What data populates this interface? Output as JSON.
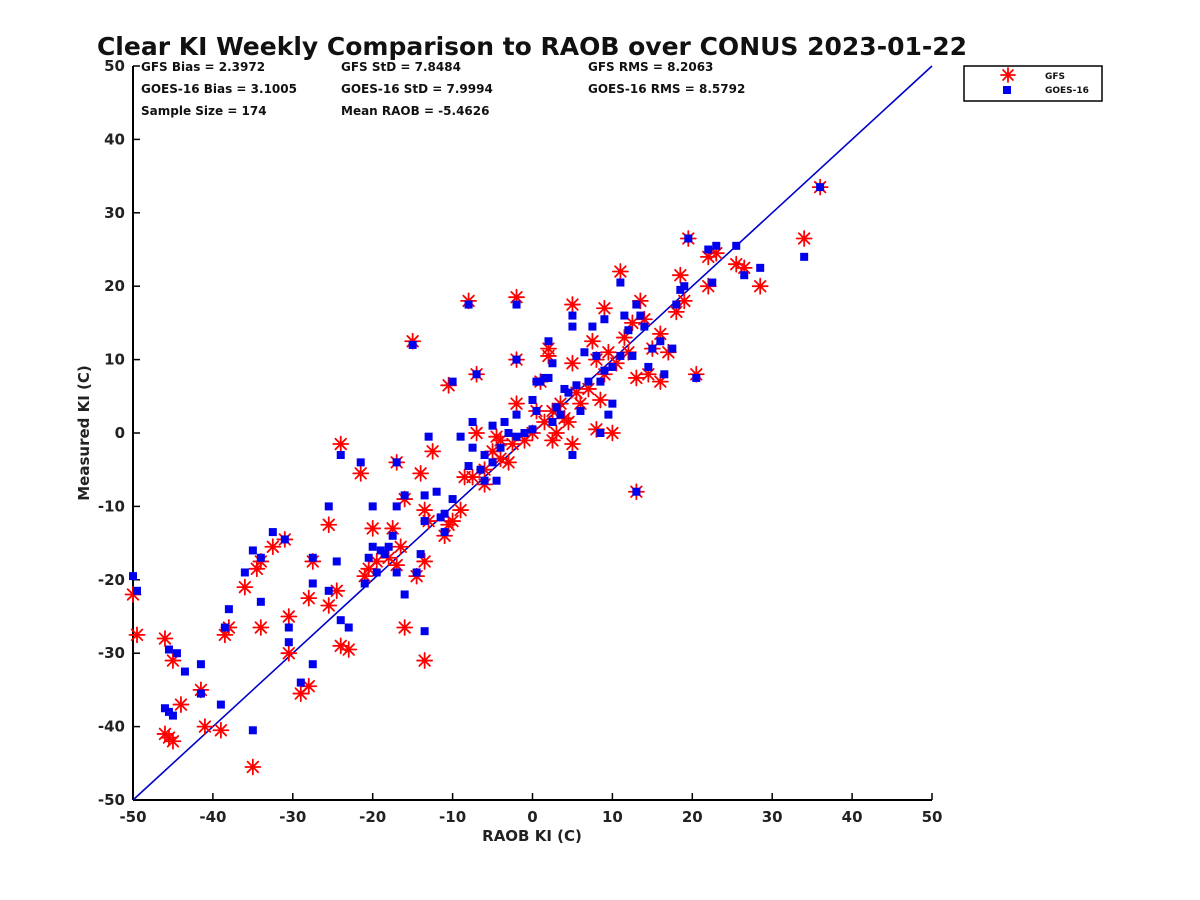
{
  "chart_data": {
    "type": "scatter",
    "title": "Clear KI Weekly Comparison to RAOB over CONUS 2023-01-22",
    "xlabel": "RAOB KI (C)",
    "ylabel": "Measured KI (C)",
    "xlim": [
      -50,
      50
    ],
    "ylim": [
      -50,
      50
    ],
    "xticks": [
      -50,
      -40,
      -30,
      -20,
      -10,
      0,
      10,
      20,
      30,
      40,
      50
    ],
    "yticks": [
      -50,
      -40,
      -30,
      -20,
      -10,
      0,
      10,
      20,
      30,
      40,
      50
    ],
    "grid": false,
    "legend_position": "outside-top-right",
    "reference_line": {
      "name": "1:1 line",
      "color": "#0000cc",
      "from": [
        -50,
        -50
      ],
      "to": [
        50,
        50
      ]
    },
    "stats": {
      "gfs_bias": "GFS Bias = 2.3972",
      "gfs_std": "GFS StD = 7.8484",
      "gfs_rms": "GFS RMS = 8.2063",
      "goes_bias": "GOES-16 Bias = 3.1005",
      "goes_std": "GOES-16 StD = 7.9994",
      "goes_rms": "GOES-16 RMS = 8.5792",
      "sample_size": "Sample Size = 174",
      "mean_raob": "Mean RAOB = -5.4626"
    },
    "series": [
      {
        "name": "GFS",
        "marker": "asterisk",
        "color": "#ff0000",
        "points": [
          [
            -50,
            -22
          ],
          [
            -49.5,
            -27.5
          ],
          [
            -46,
            -28
          ],
          [
            -45,
            -31
          ],
          [
            -46,
            -41
          ],
          [
            -45.5,
            -41.5
          ],
          [
            -45,
            -42
          ],
          [
            -44,
            -37
          ],
          [
            -41.5,
            -35
          ],
          [
            -41,
            -40
          ],
          [
            -39,
            -40.5
          ],
          [
            -38.5,
            -27.5
          ],
          [
            -38,
            -26.5
          ],
          [
            -36,
            -21
          ],
          [
            -34.5,
            -18.5
          ],
          [
            -34,
            -26.5
          ],
          [
            -34,
            -17.5
          ],
          [
            -32.5,
            -15.5
          ],
          [
            -31,
            -14.5
          ],
          [
            -30.5,
            -25
          ],
          [
            -30.5,
            -30
          ],
          [
            -29,
            -35.5
          ],
          [
            -28,
            -34.5
          ],
          [
            -28,
            -22.5
          ],
          [
            -27.5,
            -17.5
          ],
          [
            -25.5,
            -23.5
          ],
          [
            -25.5,
            -12.5
          ],
          [
            -24.5,
            -21.5
          ],
          [
            -24,
            -29
          ],
          [
            -23,
            -29.5
          ],
          [
            -35,
            -45.5
          ],
          [
            -24,
            -1.5
          ],
          [
            -21.5,
            -5.5
          ],
          [
            -21,
            -19.5
          ],
          [
            -20.5,
            -18.5
          ],
          [
            -20,
            -13
          ],
          [
            -19.5,
            -17.5
          ],
          [
            -18,
            -17
          ],
          [
            -17.5,
            -13
          ],
          [
            -17,
            -18
          ],
          [
            -17,
            -4
          ],
          [
            -16.5,
            -15.5
          ],
          [
            -16,
            -9
          ],
          [
            -16,
            -26.5
          ],
          [
            -15,
            12.5
          ],
          [
            -14.5,
            -19.5
          ],
          [
            -14,
            -5.5
          ],
          [
            -13.5,
            -31
          ],
          [
            -13.5,
            -17.5
          ],
          [
            -13.5,
            -10.5
          ],
          [
            -13,
            -12
          ],
          [
            -12.5,
            -2.5
          ],
          [
            -11,
            -14
          ],
          [
            -10.5,
            -12.5
          ],
          [
            -10,
            -12
          ],
          [
            -10.5,
            6.5
          ],
          [
            -9,
            -10.5
          ],
          [
            -8.5,
            -6
          ],
          [
            -8,
            18
          ],
          [
            -7.5,
            -6
          ],
          [
            -7,
            0
          ],
          [
            -7,
            8
          ],
          [
            -6,
            -5
          ],
          [
            -6,
            -7
          ],
          [
            -5,
            -2.5
          ],
          [
            -4.5,
            -0.5
          ],
          [
            -4,
            -1
          ],
          [
            -4,
            -3.5
          ],
          [
            -3,
            -4
          ],
          [
            -2.5,
            -1.5
          ],
          [
            -2,
            18.5
          ],
          [
            -2,
            10
          ],
          [
            -2,
            4
          ],
          [
            -1,
            -1
          ],
          [
            0,
            0
          ],
          [
            0.5,
            3
          ],
          [
            1,
            7
          ],
          [
            1.5,
            1.5
          ],
          [
            2,
            10.5
          ],
          [
            2,
            11.5
          ],
          [
            2.5,
            3
          ],
          [
            2.5,
            -1
          ],
          [
            3,
            0
          ],
          [
            3.5,
            4
          ],
          [
            4,
            2
          ],
          [
            4.5,
            1.5
          ],
          [
            5,
            17.5
          ],
          [
            5,
            9.5
          ],
          [
            5,
            -1.5
          ],
          [
            5.5,
            5.5
          ],
          [
            6,
            4
          ],
          [
            7,
            6
          ],
          [
            7.5,
            12.5
          ],
          [
            8,
            10
          ],
          [
            8,
            0.5
          ],
          [
            8.5,
            4.5
          ],
          [
            9,
            17
          ],
          [
            9,
            8
          ],
          [
            9.5,
            11
          ],
          [
            10,
            0
          ],
          [
            10.5,
            9.5
          ],
          [
            11,
            22
          ],
          [
            11.5,
            13
          ],
          [
            12,
            11
          ],
          [
            12.5,
            15
          ],
          [
            13,
            7.5
          ],
          [
            13,
            -8
          ],
          [
            13.5,
            18
          ],
          [
            14,
            15.5
          ],
          [
            14.5,
            8
          ],
          [
            15,
            11.5
          ],
          [
            16,
            13.5
          ],
          [
            16,
            7
          ],
          [
            17,
            11
          ],
          [
            18,
            16.5
          ],
          [
            18.5,
            21.5
          ],
          [
            19,
            18
          ],
          [
            19.5,
            26.5
          ],
          [
            20.5,
            8
          ],
          [
            22,
            24
          ],
          [
            22,
            20
          ],
          [
            23,
            24.5
          ],
          [
            25.5,
            23
          ],
          [
            26.5,
            22.5
          ],
          [
            28.5,
            20
          ],
          [
            34,
            26.5
          ],
          [
            36,
            33.5
          ]
        ]
      },
      {
        "name": "GOES-16",
        "marker": "square",
        "color": "#0000ee",
        "points": [
          [
            -50,
            -19.5
          ],
          [
            -49.5,
            -21.5
          ],
          [
            -46,
            -37.5
          ],
          [
            -45.5,
            -29.5
          ],
          [
            -45.5,
            -38
          ],
          [
            -45,
            -38.5
          ],
          [
            -44.5,
            -30
          ],
          [
            -43.5,
            -32.5
          ],
          [
            -41.5,
            -31.5
          ],
          [
            -41.5,
            -35.5
          ],
          [
            -39,
            -37
          ],
          [
            -38.5,
            -26.5
          ],
          [
            -38,
            -24
          ],
          [
            -36,
            -19
          ],
          [
            -35,
            -40.5
          ],
          [
            -35,
            -16
          ],
          [
            -34,
            -23
          ],
          [
            -34,
            -17
          ],
          [
            -32.5,
            -13.5
          ],
          [
            -31,
            -14.5
          ],
          [
            -30.5,
            -26.5
          ],
          [
            -30.5,
            -28.5
          ],
          [
            -29,
            -34
          ],
          [
            -27.5,
            -20.5
          ],
          [
            -27.5,
            -17
          ],
          [
            -27.5,
            -31.5
          ],
          [
            -25.5,
            -10
          ],
          [
            -25.5,
            -21.5
          ],
          [
            -24.5,
            -17.5
          ],
          [
            -24,
            -25.5
          ],
          [
            -23,
            -26.5
          ],
          [
            -24,
            -3
          ],
          [
            -21.5,
            -4
          ],
          [
            -21,
            -20.5
          ],
          [
            -20.5,
            -17
          ],
          [
            -20,
            -10
          ],
          [
            -20,
            -15.5
          ],
          [
            -19.5,
            -19
          ],
          [
            -19,
            -16
          ],
          [
            -18.5,
            -16.5
          ],
          [
            -18,
            -15.5
          ],
          [
            -17.5,
            -14
          ],
          [
            -17,
            -19
          ],
          [
            -17,
            -10
          ],
          [
            -17,
            -4
          ],
          [
            -16,
            -22
          ],
          [
            -16,
            -8.5
          ],
          [
            -15,
            12
          ],
          [
            -14.5,
            -19
          ],
          [
            -14,
            -16.5
          ],
          [
            -13.5,
            -12
          ],
          [
            -13.5,
            -27
          ],
          [
            -13.5,
            -8.5
          ],
          [
            -13,
            -0.5
          ],
          [
            -12,
            -8
          ],
          [
            -11.5,
            -11.5
          ],
          [
            -11,
            -13.5
          ],
          [
            -11,
            -11
          ],
          [
            -10,
            -9
          ],
          [
            -10,
            7
          ],
          [
            -9,
            -0.5
          ],
          [
            -8,
            -4.5
          ],
          [
            -8,
            17.5
          ],
          [
            -7.5,
            1.5
          ],
          [
            -7.5,
            -2
          ],
          [
            -7,
            8
          ],
          [
            -6.5,
            -5
          ],
          [
            -6,
            -3
          ],
          [
            -6,
            -6.5
          ],
          [
            -5,
            1
          ],
          [
            -5,
            -4
          ],
          [
            -4.5,
            -6.5
          ],
          [
            -4,
            -2
          ],
          [
            -3.5,
            1.5
          ],
          [
            -3,
            0
          ],
          [
            -2,
            17.5
          ],
          [
            -2,
            10
          ],
          [
            -2,
            2.5
          ],
          [
            -2,
            -0.5
          ],
          [
            -1,
            0
          ],
          [
            0,
            4.5
          ],
          [
            0,
            0.5
          ],
          [
            0.5,
            7
          ],
          [
            0.5,
            3
          ],
          [
            1,
            7
          ],
          [
            1.5,
            7.5
          ],
          [
            2,
            12.5
          ],
          [
            2,
            7.5
          ],
          [
            2.5,
            1.5
          ],
          [
            2.5,
            9.5
          ],
          [
            3,
            3.5
          ],
          [
            3.5,
            2.5
          ],
          [
            4,
            6
          ],
          [
            4.5,
            5.5
          ],
          [
            5,
            16
          ],
          [
            5,
            14.5
          ],
          [
            5,
            -3
          ],
          [
            5.5,
            6.5
          ],
          [
            6,
            3
          ],
          [
            6.5,
            11
          ],
          [
            7,
            7
          ],
          [
            7.5,
            14.5
          ],
          [
            8,
            10.5
          ],
          [
            8.5,
            7
          ],
          [
            8.5,
            0
          ],
          [
            9,
            15.5
          ],
          [
            9,
            8.5
          ],
          [
            9.5,
            2.5
          ],
          [
            10,
            9
          ],
          [
            10,
            4
          ],
          [
            11,
            10.5
          ],
          [
            11,
            20.5
          ],
          [
            11.5,
            16
          ],
          [
            12,
            14
          ],
          [
            12.5,
            10.5
          ],
          [
            13,
            17.5
          ],
          [
            13,
            -8
          ],
          [
            13.5,
            16
          ],
          [
            14,
            14.5
          ],
          [
            14.5,
            9
          ],
          [
            15,
            11.5
          ],
          [
            16,
            12.5
          ],
          [
            16.5,
            8
          ],
          [
            17.5,
            11.5
          ],
          [
            18,
            17.5
          ],
          [
            18.5,
            19.5
          ],
          [
            19,
            20
          ],
          [
            19.5,
            26.5
          ],
          [
            20.5,
            7.5
          ],
          [
            22,
            25
          ],
          [
            22.5,
            20.5
          ],
          [
            23,
            25.5
          ],
          [
            25.5,
            25.5
          ],
          [
            26.5,
            21.5
          ],
          [
            28.5,
            22.5
          ],
          [
            34,
            24
          ],
          [
            36,
            33.5
          ]
        ]
      }
    ]
  }
}
